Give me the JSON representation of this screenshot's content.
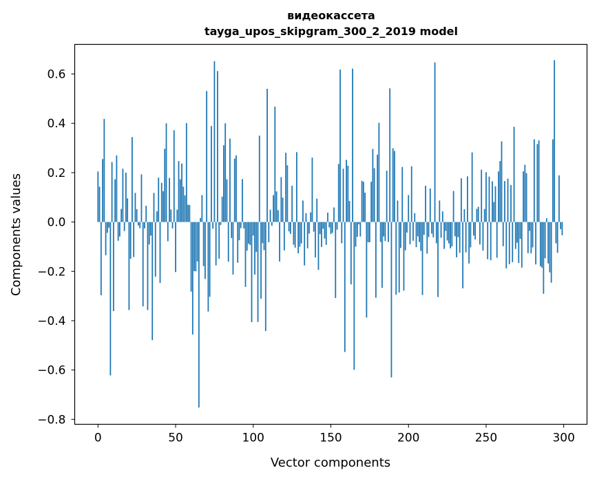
{
  "chart_data": {
    "type": "bar",
    "title": "видеокассета",
    "subtitle": "tayga_upos_skipgram_300_2_2019 model",
    "xlabel": "Vector components",
    "ylabel": "Components values",
    "xlim": [
      -15,
      315
    ],
    "ylim": [
      -0.82,
      0.72
    ],
    "x_ticks": [
      0,
      50,
      100,
      150,
      200,
      250,
      300
    ],
    "x_tick_labels": [
      "0",
      "50",
      "100",
      "150",
      "200",
      "250",
      "300"
    ],
    "y_ticks": [
      -0.8,
      -0.6,
      -0.4,
      -0.2,
      0.0,
      0.2,
      0.4,
      0.6
    ],
    "y_tick_labels": [
      "−0.8",
      "−0.6",
      "−0.4",
      "−0.2",
      "0.0",
      "0.2",
      "0.4",
      "0.6"
    ],
    "grid": false,
    "bar_color": "#1f77b4",
    "values": [
      0.205,
      0.143,
      -0.297,
      0.255,
      0.418,
      -0.135,
      -0.044,
      -0.023,
      -0.622,
      0.243,
      -0.361,
      0.173,
      0.27,
      -0.076,
      -0.059,
      0.053,
      0.216,
      -0.037,
      0.2,
      0.096,
      -0.357,
      -0.149,
      0.344,
      -0.142,
      0.118,
      0.052,
      -0.014,
      -0.025,
      0.193,
      -0.342,
      -0.026,
      0.066,
      -0.357,
      -0.091,
      -0.055,
      -0.479,
      0.118,
      -0.222,
      0.043,
      0.18,
      -0.247,
      0.159,
      0.125,
      0.297,
      0.4,
      -0.078,
      0.179,
      0.051,
      -0.026,
      0.372,
      -0.203,
      0.05,
      0.247,
      0.173,
      0.237,
      0.143,
      0.108,
      0.401,
      0.07,
      0.069,
      -0.282,
      -0.456,
      -0.199,
      -0.2,
      -0.16,
      -0.752,
      0.016,
      0.109,
      -0.179,
      -0.231,
      0.531,
      -0.363,
      -0.303,
      0.389,
      -0.027,
      0.652,
      -0.176,
      0.612,
      -0.149,
      -0.012,
      0.103,
      0.311,
      0.4,
      0.173,
      -0.161,
      0.338,
      -0.065,
      -0.213,
      0.257,
      0.27,
      -0.165,
      -0.074,
      -0.025,
      0.174,
      -0.026,
      -0.263,
      -0.116,
      -0.088,
      -0.093,
      -0.406,
      -0.055,
      -0.213,
      -0.121,
      -0.405,
      0.35,
      -0.311,
      -0.086,
      -0.114,
      -0.442,
      0.54,
      -0.082,
      0.05,
      -0.015,
      0.109,
      0.468,
      0.124,
      0.048,
      -0.16,
      0.182,
      0.099,
      -0.115,
      0.281,
      0.23,
      -0.038,
      -0.048,
      0.147,
      -0.092,
      -0.104,
      0.283,
      -0.127,
      -0.1,
      -0.087,
      0.087,
      -0.176,
      0.036,
      -0.107,
      -0.047,
      0.039,
      0.261,
      -0.039,
      -0.144,
      0.095,
      -0.194,
      -0.049,
      -0.101,
      -0.027,
      -0.067,
      -0.093,
      0.038,
      -0.022,
      -0.049,
      -0.044,
      0.059,
      -0.308,
      -0.031,
      0.235,
      0.618,
      -0.086,
      0.216,
      -0.527,
      0.252,
      0.228,
      0.085,
      -0.253,
      0.622,
      -0.599,
      -0.1,
      -0.06,
      -0.009,
      -0.059,
      0.167,
      0.163,
      0.119,
      -0.387,
      -0.082,
      -0.082,
      0.163,
      0.296,
      0.218,
      -0.307,
      0.273,
      0.402,
      -0.081,
      -0.267,
      -0.059,
      -0.077,
      0.208,
      -0.081,
      0.542,
      -0.63,
      0.299,
      0.288,
      -0.295,
      0.087,
      -0.286,
      -0.105,
      0.223,
      -0.278,
      -0.115,
      -0.043,
      0.109,
      -0.09,
      0.226,
      -0.076,
      0.036,
      -0.102,
      -0.058,
      -0.081,
      -0.117,
      -0.296,
      -0.052,
      0.147,
      -0.128,
      -0.061,
      0.136,
      -0.047,
      -0.062,
      0.647,
      -0.086,
      -0.304,
      0.087,
      -0.064,
      0.043,
      -0.109,
      -0.036,
      -0.075,
      -0.087,
      -0.107,
      -0.099,
      0.126,
      -0.058,
      -0.143,
      -0.061,
      -0.125,
      0.177,
      -0.269,
      0.052,
      -0.123,
      0.185,
      -0.168,
      -0.103,
      0.282,
      -0.055,
      -0.071,
      0.053,
      0.062,
      -0.091,
      0.212,
      -0.116,
      0.053,
      0.202,
      -0.151,
      0.184,
      -0.155,
      0.165,
      0.081,
      0.145,
      -0.145,
      0.205,
      0.247,
      0.327,
      -0.098,
      0.166,
      -0.188,
      0.176,
      -0.171,
      0.15,
      -0.163,
      0.386,
      -0.109,
      -0.084,
      -0.166,
      -0.068,
      -0.185,
      0.205,
      0.232,
      0.198,
      -0.126,
      -0.036,
      -0.127,
      -0.103,
      0.335,
      -0.172,
      0.316,
      0.331,
      -0.179,
      -0.185,
      -0.291,
      -0.147,
      0.015,
      -0.168,
      -0.204,
      -0.246,
      0.335,
      0.656,
      -0.086,
      -0.125,
      0.189,
      -0.029,
      -0.054
    ]
  }
}
